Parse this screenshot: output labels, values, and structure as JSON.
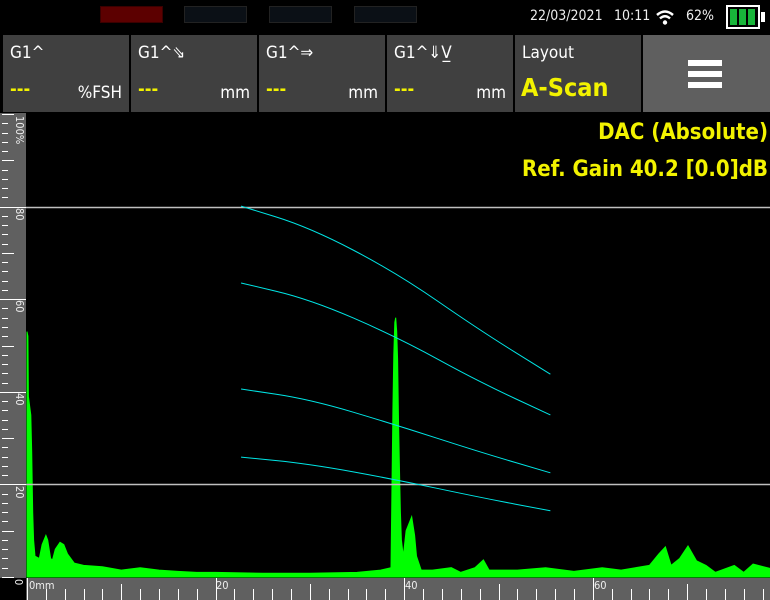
{
  "status_bar": {
    "indicators": [
      {
        "state": "active",
        "color": "#5c0000"
      },
      {
        "state": "off",
        "color": "#0b1016"
      },
      {
        "state": "off",
        "color": "#0b1016"
      },
      {
        "state": "off",
        "color": "#0b1016"
      }
    ],
    "date": "22/03/2021",
    "time": "10:11",
    "wifi_icon": "wifi-icon",
    "battery_percent": "62%",
    "battery_level": 0.62
  },
  "tiles": [
    {
      "label": "G1^",
      "value": "---",
      "unit": "%FSH"
    },
    {
      "label": "G1^⇘",
      "value": "---",
      "unit": "mm"
    },
    {
      "label": "G1^⇒",
      "value": "---",
      "unit": "mm"
    },
    {
      "label": "G1^⇓V̲",
      "value": "---",
      "unit": "mm"
    }
  ],
  "layout_tile": {
    "label": "Layout",
    "value": "A-Scan"
  },
  "menu_icon": "hamburger-menu-icon",
  "overlay": {
    "mode": "DAC (Absolute)",
    "ref_gain": "Ref. Gain 40.2 [0.0]dB"
  },
  "colors": {
    "signal": "#00ff00",
    "dac": "#00e5e5",
    "gate": "#bfbfbf",
    "accent": "#f2f200"
  },
  "chart_data": {
    "type": "area",
    "y_axis": {
      "range": [
        0,
        100
      ],
      "tick_labels": [
        "0",
        "20",
        "40",
        "60",
        "80",
        "100%"
      ],
      "ticks": [
        0,
        20,
        40,
        60,
        80,
        100
      ]
    },
    "x_axis": {
      "range": [
        0,
        79
      ],
      "tick_labels": [
        "0mm",
        "20",
        "40",
        "60"
      ],
      "ticks": [
        0,
        20,
        40,
        60
      ]
    },
    "gate_lines": [
      80,
      20
    ],
    "dac_curves": [
      {
        "points": [
          [
            22.7,
            80.1
          ],
          [
            30,
            75.5
          ],
          [
            39.2,
            65.7
          ],
          [
            48,
            53.3
          ],
          [
            55.5,
            43.8
          ]
        ]
      },
      {
        "points": [
          [
            22.7,
            63.5
          ],
          [
            30,
            60.0
          ],
          [
            39.2,
            51.9
          ],
          [
            48,
            42.1
          ],
          [
            55.5,
            35.0
          ]
        ]
      },
      {
        "points": [
          [
            22.7,
            40.6
          ],
          [
            30,
            38.4
          ],
          [
            39.2,
            32.8
          ],
          [
            48,
            27.0
          ],
          [
            55.5,
            22.5
          ]
        ]
      },
      {
        "points": [
          [
            22.7,
            25.9
          ],
          [
            30,
            24.4
          ],
          [
            39.2,
            21.0
          ],
          [
            48,
            17.2
          ],
          [
            55.5,
            14.3
          ]
        ]
      }
    ],
    "signal": [
      [
        0,
        0
      ],
      [
        0,
        53
      ],
      [
        0.1,
        52
      ],
      [
        0.15,
        39
      ],
      [
        0.4,
        35
      ],
      [
        0.5,
        27
      ],
      [
        0.6,
        14
      ],
      [
        0.7,
        8
      ],
      [
        0.85,
        4.5
      ],
      [
        1.3,
        4
      ],
      [
        1.6,
        7
      ],
      [
        2.0,
        9
      ],
      [
        2.2,
        8
      ],
      [
        2.5,
        4
      ],
      [
        2.7,
        3.7
      ],
      [
        3.0,
        6
      ],
      [
        3.5,
        7.5
      ],
      [
        3.9,
        7
      ],
      [
        4.3,
        5
      ],
      [
        5.0,
        3
      ],
      [
        6,
        2.5
      ],
      [
        8,
        2.2
      ],
      [
        10,
        1.5
      ],
      [
        12,
        2
      ],
      [
        14,
        1.5
      ],
      [
        16,
        1.2
      ],
      [
        18,
        1
      ],
      [
        20,
        1
      ],
      [
        25,
        0.8
      ],
      [
        30,
        0.8
      ],
      [
        35,
        1
      ],
      [
        37.5,
        1.5
      ],
      [
        38.6,
        2
      ],
      [
        38.8,
        36
      ],
      [
        38.9,
        48
      ],
      [
        39.0,
        55
      ],
      [
        39.1,
        56
      ],
      [
        39.2,
        53
      ],
      [
        39.3,
        47
      ],
      [
        39.4,
        34
      ],
      [
        39.5,
        23
      ],
      [
        39.6,
        14
      ],
      [
        39.7,
        8
      ],
      [
        39.9,
        4.5
      ],
      [
        40.2,
        10
      ],
      [
        40.8,
        13
      ],
      [
        41.1,
        9
      ],
      [
        41.3,
        4.5
      ],
      [
        41.8,
        1.5
      ],
      [
        43,
        1.5
      ],
      [
        45,
        2
      ],
      [
        46,
        1
      ],
      [
        47.5,
        2
      ],
      [
        48.4,
        3.7
      ],
      [
        49,
        1.5
      ],
      [
        52,
        1.5
      ],
      [
        55,
        2
      ],
      [
        58,
        1.2
      ],
      [
        61,
        2
      ],
      [
        63,
        1.5
      ],
      [
        66,
        2.5
      ],
      [
        67,
        5
      ],
      [
        67.7,
        6.5
      ],
      [
        68.3,
        2.5
      ],
      [
        69.2,
        4
      ],
      [
        70.1,
        6.7
      ],
      [
        71,
        3.5
      ],
      [
        72,
        2.5
      ],
      [
        73,
        1
      ],
      [
        75,
        2.5
      ],
      [
        76,
        1
      ],
      [
        77,
        2.8
      ],
      [
        78.9,
        1.8
      ],
      [
        78.9,
        0
      ]
    ]
  }
}
